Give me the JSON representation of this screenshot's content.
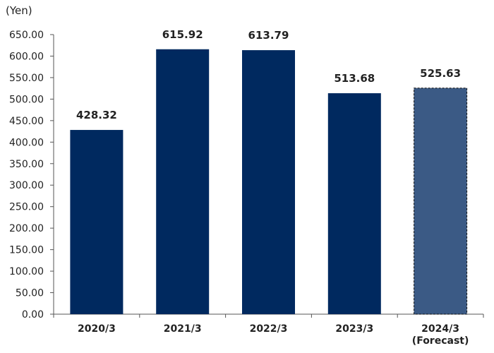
{
  "chart_data": {
    "type": "bar",
    "unit_label": "(Yen)",
    "categories": [
      "2020/3",
      "2021/3",
      "2022/3",
      "2023/3",
      "2024/3"
    ],
    "category_sublabels": [
      "",
      "",
      "",
      "",
      "(Forecast)"
    ],
    "values": [
      428.32,
      615.92,
      613.79,
      513.68,
      525.63
    ],
    "value_labels": [
      "428.32",
      "615.92",
      "613.79",
      "513.68",
      "525.63"
    ],
    "forecast": [
      false,
      false,
      false,
      false,
      true
    ],
    "ylim": [
      0,
      650
    ],
    "yticks": [
      "0.00",
      "50.00",
      "100.00",
      "150.00",
      "200.00",
      "250.00",
      "300.00",
      "350.00",
      "400.00",
      "450.00",
      "500.00",
      "550.00",
      "600.00",
      "650.00"
    ],
    "grid": false,
    "colors": {
      "actual": "#00295f",
      "forecast": "#3b5a85",
      "axis": "#555555",
      "text": "#222222"
    }
  }
}
